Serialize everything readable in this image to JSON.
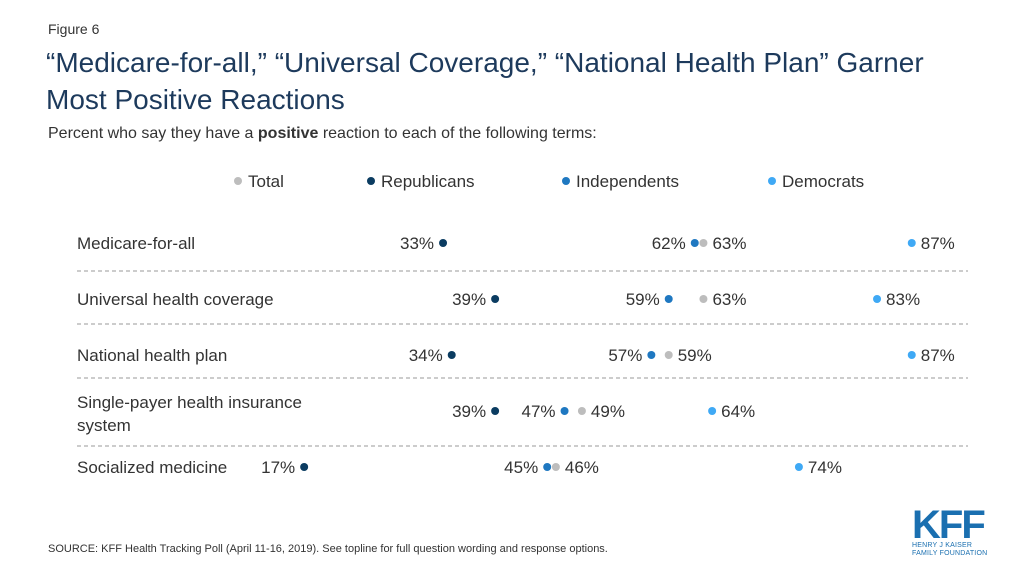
{
  "figure_label": "Figure 6",
  "title": "“Medicare-for-all,” “Universal Coverage,” “National Health Plan” Garner Most Positive Reactions",
  "subtitle_pre": "Percent who say they have a ",
  "subtitle_bold": "positive",
  "subtitle_post": " reaction to each of the following terms:",
  "source": "SOURCE: KFF Health Tracking Poll (April 11-16, 2019). See topline for full question wording and response options.",
  "logo": {
    "text": "KFF",
    "line1": "HENRY J KAISER",
    "line2": "FAMILY FOUNDATION"
  },
  "colors": {
    "Total": "#bdbdbd",
    "Republicans": "#0b3c61",
    "Independents": "#1f78c1",
    "Democrats": "#3fa9f5"
  },
  "chart_data": {
    "type": "scatter",
    "categories": [
      "Medicare-for-all",
      "Universal health coverage",
      "National health plan",
      "Single-payer health insurance system",
      "Socialized medicine"
    ],
    "series": [
      {
        "name": "Total",
        "values": [
          63,
          63,
          59,
          49,
          46
        ]
      },
      {
        "name": "Republicans",
        "values": [
          33,
          39,
          34,
          39,
          17
        ]
      },
      {
        "name": "Independents",
        "values": [
          62,
          59,
          57,
          47,
          45
        ]
      },
      {
        "name": "Democrats",
        "values": [
          87,
          83,
          87,
          64,
          74
        ]
      }
    ],
    "legend": [
      "Total",
      "Republicans",
      "Independents",
      "Democrats"
    ],
    "value_suffix": "%",
    "xlim": [
      0,
      100
    ]
  }
}
